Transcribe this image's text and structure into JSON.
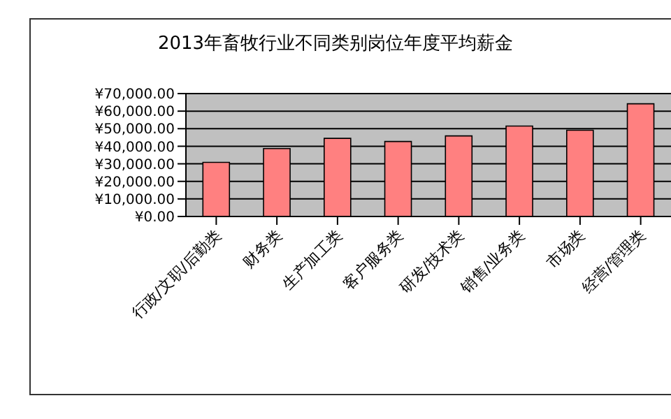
{
  "chart_data": {
    "type": "bar",
    "title": "2013年畜牧行业不同类别岗位年度平均薪金",
    "categories": [
      "行政/文职/后勤类",
      "财务类",
      "生产加工类",
      "客户服务类",
      "研发/技术类",
      "销售/业务类",
      "市场类",
      "经营/管理类"
    ],
    "values": [
      30800,
      38700,
      44500,
      42700,
      45900,
      51500,
      49100,
      64200
    ],
    "color": "#ff8080",
    "ylim": [
      0,
      70000
    ],
    "yticks": [
      {
        "value": 0,
        "label": "¥0.00"
      },
      {
        "value": 10000,
        "label": "¥10,000.00"
      },
      {
        "value": 20000,
        "label": "¥20,000.00"
      },
      {
        "value": 30000,
        "label": "¥30,000.00"
      },
      {
        "value": 40000,
        "label": "¥40,000.00"
      },
      {
        "value": 50000,
        "label": "¥50,000.00"
      },
      {
        "value": 60000,
        "label": "¥60,000.00"
      },
      {
        "value": 70000,
        "label": "¥70,000.00"
      }
    ],
    "grid": "y"
  }
}
